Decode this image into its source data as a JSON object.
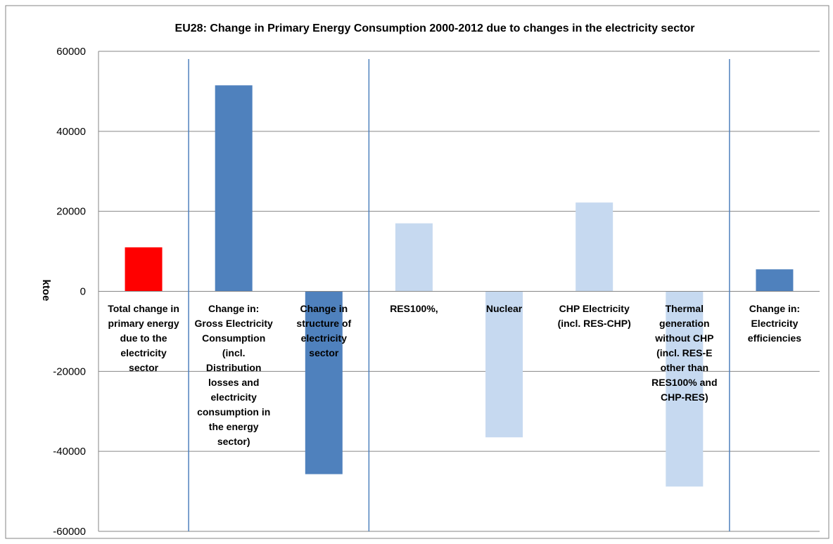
{
  "chart_data": {
    "type": "bar",
    "title": "EU28: Change in Primary Energy Consumption 2000-2012 due to changes in the electricity sector",
    "ylabel": "ktoe",
    "ylim": [
      -60000,
      60000
    ],
    "yticks": [
      "60000",
      "40000",
      "20000",
      "0",
      "-20000",
      "-40000",
      "-60000"
    ],
    "ytick_values": [
      60000,
      40000,
      20000,
      0,
      -20000,
      -40000,
      -60000
    ],
    "grid": true,
    "legend": "none",
    "categories": [
      "Total change in primary energy due to the electricity sector",
      "Change in: Gross Electricity Consumption (incl. Distribution losses and electricity consumption in the energy sector)",
      "Change in structure of electricity sector",
      "RES100%,",
      "Nuclear",
      "CHP Electricity (incl. RES-CHP)",
      "Thermal generation without CHP (incl. RES-E other than RES100% and CHP-RES)",
      "Change in: Electricity efficiencies"
    ],
    "category_label_lines": [
      [
        "Total change in",
        "primary energy",
        "due to the",
        "electricity",
        "sector"
      ],
      [
        "Change in:",
        "Gross Electricity",
        "Consumption",
        "(incl.",
        "Distribution",
        "losses and",
        "electricity",
        "consumption in",
        "the energy",
        "sector)"
      ],
      [
        "Change in",
        "structure of",
        "electricity",
        "sector"
      ],
      [
        "RES100%,"
      ],
      [
        "Nuclear"
      ],
      [
        "CHP Electricity",
        "(incl. RES-CHP)"
      ],
      [
        "Thermal",
        "generation",
        "without CHP",
        "(incl. RES-E",
        "other than",
        "RES100% and",
        "CHP-RES)"
      ],
      [
        "Change in:",
        "Electricity",
        "efficiencies"
      ]
    ],
    "values": [
      11000,
      51500,
      -45700,
      17000,
      -36500,
      22200,
      -48800,
      5500
    ],
    "colors": [
      "#ff0000",
      "#4f81bd",
      "#4f81bd",
      "#c6d9f0",
      "#c6d9f0",
      "#c6d9f0",
      "#c6d9f0",
      "#4f81bd"
    ],
    "separators_after_index": [
      0,
      2,
      6
    ],
    "colors_theme": {
      "grid": "#868686",
      "axis": "#868686",
      "separator": "#4f81bd",
      "frame": "#868686"
    }
  }
}
